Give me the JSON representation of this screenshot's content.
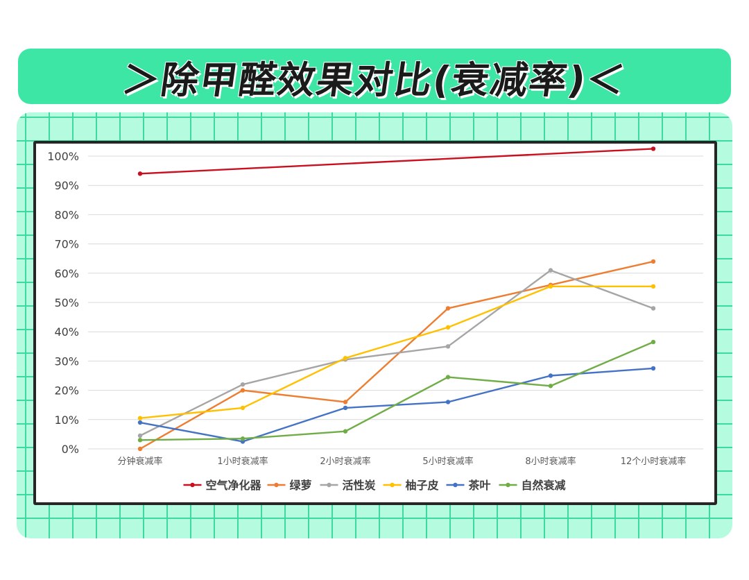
{
  "banner": {
    "title": "＞除甲醛效果对比(衰减率)＜"
  },
  "chart_data": {
    "type": "line",
    "categories": [
      "分钟衰减率",
      "1小时衰减率",
      "2小时衰减率",
      "5小时衰减率",
      "8小时衰减率",
      "12个小时衰减率"
    ],
    "y_ticks": [
      "0%",
      "10%",
      "20%",
      "30%",
      "40%",
      "50%",
      "60%",
      "70%",
      "80%",
      "90%",
      "100%"
    ],
    "ylim": [
      0,
      100
    ],
    "grid": true,
    "legend_position": "bottom",
    "series": [
      {
        "name": "空气净化器",
        "color": "#c8101e",
        "values": [
          94,
          null,
          null,
          null,
          null,
          102.5
        ]
      },
      {
        "name": "绿萝",
        "color": "#ed7d31",
        "values": [
          0,
          20,
          16,
          48,
          56,
          64
        ]
      },
      {
        "name": "活性炭",
        "color": "#a5a5a5",
        "values": [
          4.5,
          22,
          30.5,
          35,
          61,
          48
        ]
      },
      {
        "name": "柚子皮",
        "color": "#ffc000",
        "values": [
          10.5,
          14,
          31,
          41.5,
          55.5,
          55.5
        ]
      },
      {
        "name": "茶叶",
        "color": "#4472c4",
        "values": [
          9,
          2.5,
          14,
          16,
          25,
          27.5
        ]
      },
      {
        "name": "自然衰减",
        "color": "#70ad47",
        "values": [
          3,
          3.5,
          6,
          24.5,
          21.5,
          36.5
        ]
      }
    ]
  }
}
